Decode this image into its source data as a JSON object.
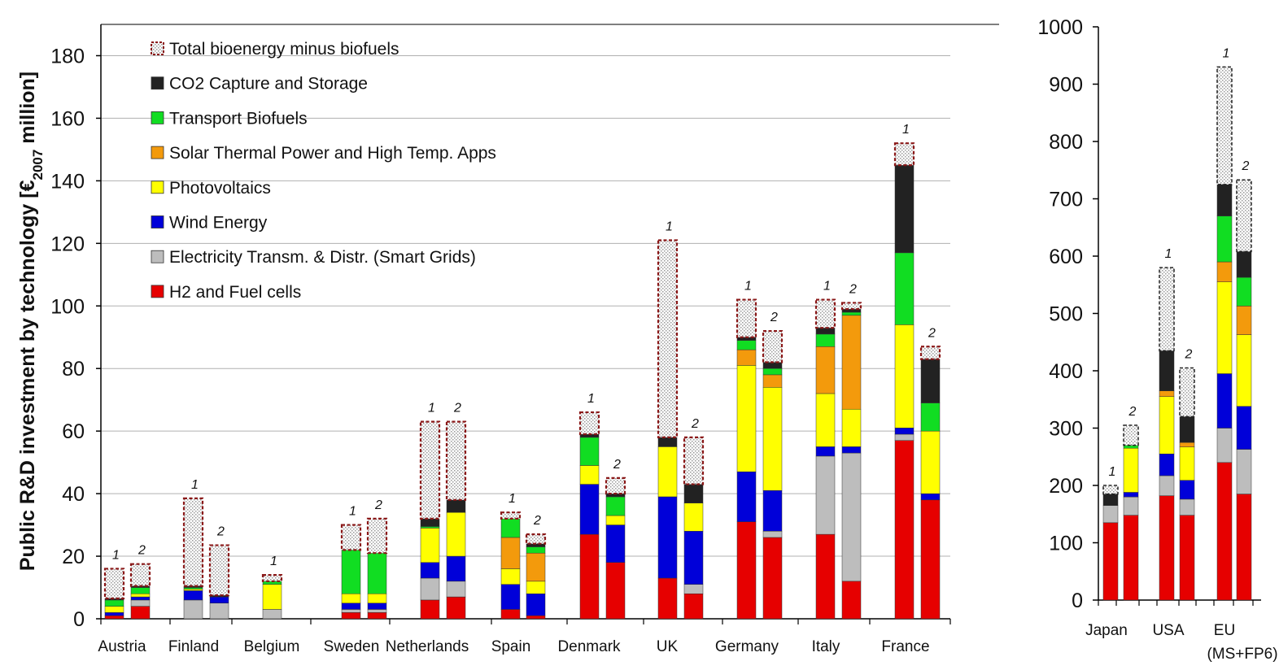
{
  "chart_data": [
    {
      "type": "bar",
      "stacked": true,
      "ylabel": "Public R&D investment by technology [€2007 million]",
      "ylabel_prefix": "Public R&D investment by technology [€",
      "ylabel_sub": "2007",
      "ylabel_suffix": " million]",
      "ylim": [
        0,
        190
      ],
      "yticks": [
        "0",
        "20",
        "40",
        "60",
        "80",
        "100",
        "120",
        "140",
        "160",
        "180"
      ],
      "grid": "horizontal",
      "legend_position": "top-left",
      "series_names": [
        "H2 and Fuel cells",
        "Electricity Transm. & Distr. (Smart Grids)",
        "Wind Energy",
        "Photovoltaics",
        "Solar Thermal Power and High Temp. Apps",
        "Transport Biofuels",
        "CO2 Capture and Storage",
        "Total bioenergy minus biofuels"
      ],
      "legend_order": [
        "Total bioenergy minus biofuels",
        "CO2 Capture and Storage",
        "Transport Biofuels",
        "Solar Thermal Power and High Temp. Apps",
        "Photovoltaics",
        "Wind Energy",
        "Electricity Transm. & Distr. (Smart Grids)",
        "H2 and Fuel cells"
      ],
      "categories": [
        "Austria",
        "Finland",
        "Belgium",
        "Sweden",
        "Netherlands",
        "Spain",
        "Denmark",
        "UK",
        "Germany",
        "Italy",
        "France"
      ],
      "bars": [
        {
          "category": "Austria",
          "label": "1",
          "values": [
            1,
            0,
            1,
            2,
            0,
            2,
            0.5,
            9.5
          ]
        },
        {
          "category": "Austria",
          "label": "2",
          "values": [
            4,
            2,
            1,
            1,
            0,
            2,
            0.5,
            7
          ]
        },
        {
          "category": "Finland",
          "label": "1",
          "values": [
            0,
            6,
            3,
            0.5,
            0,
            0.5,
            0.5,
            28
          ]
        },
        {
          "category": "Finland",
          "label": "2",
          "values": [
            0,
            5,
            2,
            0,
            0,
            0,
            0.5,
            16
          ]
        },
        {
          "category": "Belgium",
          "label": "1",
          "values": [
            0,
            3,
            0,
            8,
            0,
            1,
            0,
            2
          ]
        },
        {
          "category": "Sweden",
          "label": "1",
          "values": [
            2,
            1,
            2,
            3,
            0,
            14,
            0,
            8
          ]
        },
        {
          "category": "Sweden",
          "label": "2",
          "values": [
            2,
            1,
            2,
            3,
            0,
            13,
            0,
            11
          ]
        },
        {
          "category": "Netherlands",
          "label": "1",
          "values": [
            6,
            7,
            5,
            11,
            0,
            0.5,
            2.5,
            31
          ]
        },
        {
          "category": "Netherlands",
          "label": "2",
          "values": [
            7,
            5,
            8,
            14,
            0,
            0,
            4,
            25
          ]
        },
        {
          "category": "Spain",
          "label": "1",
          "values": [
            3,
            0,
            8,
            5,
            10,
            6,
            0,
            2
          ]
        },
        {
          "category": "Spain",
          "label": "2",
          "values": [
            1,
            0,
            7,
            4,
            9,
            2,
            1,
            3
          ]
        },
        {
          "category": "Denmark",
          "label": "1",
          "values": [
            27,
            0,
            16,
            6,
            0,
            9,
            1,
            7
          ]
        },
        {
          "category": "Denmark",
          "label": "2",
          "values": [
            18,
            0,
            12,
            3,
            0,
            6,
            1,
            5
          ]
        },
        {
          "category": "UK",
          "label": "1",
          "values": [
            13,
            0,
            26,
            16,
            0,
            0,
            3,
            63
          ]
        },
        {
          "category": "UK",
          "label": "2",
          "values": [
            8,
            3,
            17,
            9,
            0,
            0,
            6,
            15
          ]
        },
        {
          "category": "Germany",
          "label": "1",
          "values": [
            31,
            0,
            16,
            34,
            5,
            3,
            1,
            12
          ]
        },
        {
          "category": "Germany",
          "label": "2",
          "values": [
            26,
            2,
            13,
            33,
            4,
            2,
            2,
            10
          ]
        },
        {
          "category": "Italy",
          "label": "1",
          "values": [
            27,
            25,
            3,
            17,
            15,
            4,
            2,
            9
          ]
        },
        {
          "category": "Italy",
          "label": "2",
          "values": [
            12,
            41,
            2,
            12,
            30,
            1,
            1,
            2
          ]
        },
        {
          "category": "France",
          "label": "1",
          "values": [
            57,
            2,
            2,
            33,
            0,
            23,
            28,
            7
          ]
        },
        {
          "category": "France",
          "label": "2",
          "values": [
            38,
            0,
            2,
            20,
            0,
            9,
            14,
            4
          ]
        }
      ]
    },
    {
      "type": "bar",
      "stacked": true,
      "ylim": [
        0,
        1000
      ],
      "yticks": [
        "0",
        "100",
        "200",
        "300",
        "400",
        "500",
        "600",
        "700",
        "800",
        "900",
        "1000"
      ],
      "grid": "none",
      "categories": [
        "Japan",
        "USA",
        "EU"
      ],
      "category_sublabels": [
        "",
        "",
        "(MS+FP6)"
      ],
      "bars": [
        {
          "category": "Japan",
          "label": "1",
          "values": [
            135,
            30,
            0,
            0,
            0,
            0,
            20,
            15
          ]
        },
        {
          "category": "Japan",
          "label": "2",
          "values": [
            148,
            32,
            8,
            77,
            0,
            5,
            0,
            35
          ]
        },
        {
          "category": "USA",
          "label": "1",
          "values": [
            182,
            35,
            38,
            100,
            10,
            0,
            70,
            145
          ]
        },
        {
          "category": "USA",
          "label": "2",
          "values": [
            148,
            28,
            33,
            58,
            8,
            0,
            45,
            85
          ]
        },
        {
          "category": "EU",
          "label": "1",
          "values": [
            240,
            60,
            95,
            160,
            35,
            80,
            55,
            205
          ]
        },
        {
          "category": "EU",
          "label": "2",
          "values": [
            185,
            78,
            75,
            125,
            50,
            50,
            45,
            125
          ]
        }
      ]
    }
  ],
  "colors": {
    "H2 and Fuel cells": "#e60000",
    "Electricity Transm. & Distr. (Smart Grids)": "#bdbdbd",
    "Wind Energy": "#0000d9",
    "Photovoltaics": "#ffff00",
    "Solar Thermal Power and High Temp. Apps": "#f39a0c",
    "Transport Biofuels": "#11dd22",
    "CO2 Capture and Storage": "#222222",
    "Total bioenergy minus biofuels": "#ffffff",
    "bioenergy_outline": "#8a1818"
  }
}
